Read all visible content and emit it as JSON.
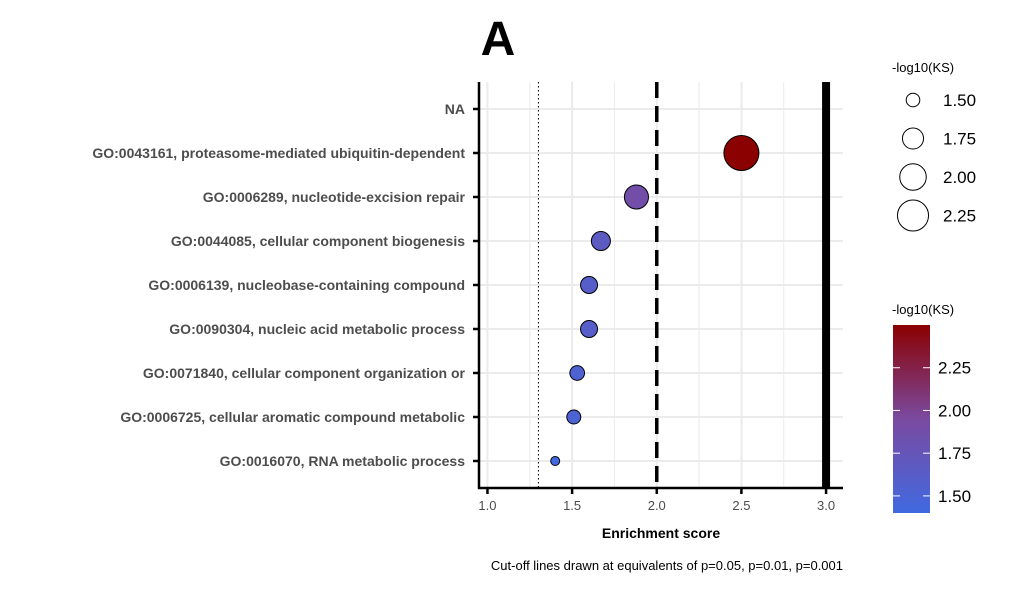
{
  "chart_data": {
    "type": "scatter",
    "title": "A",
    "xlabel": "Enrichment score",
    "ylabel": "",
    "caption": "Cut-off lines drawn at equivalents of p=0.05, p=0.01, p=0.001",
    "xlim": [
      0.95,
      3.1
    ],
    "x_ticks": [
      "1.0",
      "1.5",
      "2.0",
      "2.5",
      "3.0"
    ],
    "x_tick_values": [
      1.0,
      1.5,
      2.0,
      2.5,
      3.0
    ],
    "categories": [
      "NA",
      "GO:0043161, proteasome-mediated ubiquitin-dependent",
      "GO:0006289, nucleotide-excision repair",
      "GO:0044085, cellular component biogenesis",
      "GO:0006139, nucleobase-containing compound",
      "GO:0090304, nucleic acid metabolic process",
      "GO:0071840, cellular component organization or",
      "GO:0006725, cellular aromatic compound metabolic",
      "GO:0016070, RNA metabolic process"
    ],
    "points": [
      {
        "category": "GO:0043161, proteasome-mediated ubiquitin-dependent",
        "x": 2.5,
        "size_value": 2.5,
        "color_value": 2.5
      },
      {
        "category": "GO:0006289, nucleotide-excision repair",
        "x": 1.88,
        "size_value": 1.88,
        "color_value": 1.88
      },
      {
        "category": "GO:0044085, cellular component biogenesis",
        "x": 1.67,
        "size_value": 1.67,
        "color_value": 1.67
      },
      {
        "category": "GO:0006139, nucleobase-containing compound",
        "x": 1.6,
        "size_value": 1.6,
        "color_value": 1.6
      },
      {
        "category": "GO:0090304, nucleic acid metabolic process",
        "x": 1.6,
        "size_value": 1.6,
        "color_value": 1.6
      },
      {
        "category": "GO:0071840, cellular component organization or",
        "x": 1.53,
        "size_value": 1.53,
        "color_value": 1.53
      },
      {
        "category": "GO:0006725, cellular aromatic compound metabolic",
        "x": 1.51,
        "size_value": 1.51,
        "color_value": 1.51
      },
      {
        "category": "GO:0016070, RNA metabolic process",
        "x": 1.4,
        "size_value": 1.4,
        "color_value": 1.4
      }
    ],
    "cutoff_lines": [
      {
        "x": 1.301,
        "style": "dotted"
      },
      {
        "x": 2.0,
        "style": "dashed"
      },
      {
        "x": 3.0,
        "style": "solid"
      }
    ],
    "grid": true,
    "size_legend": {
      "title": "-log10(KS)",
      "labels": [
        "1.50",
        "1.75",
        "2.00",
        "2.25"
      ],
      "values": [
        1.5,
        1.75,
        2.0,
        2.25
      ],
      "placement": "top-right"
    },
    "color_legend": {
      "title": "-log10(KS)",
      "labels": [
        "2.25",
        "2.00",
        "1.75",
        "1.50"
      ],
      "values": [
        2.25,
        2.0,
        1.75,
        1.5
      ],
      "range": [
        1.4,
        2.5
      ],
      "low_color": "#4169e1",
      "high_color": "#8b0000",
      "placement": "right"
    }
  }
}
